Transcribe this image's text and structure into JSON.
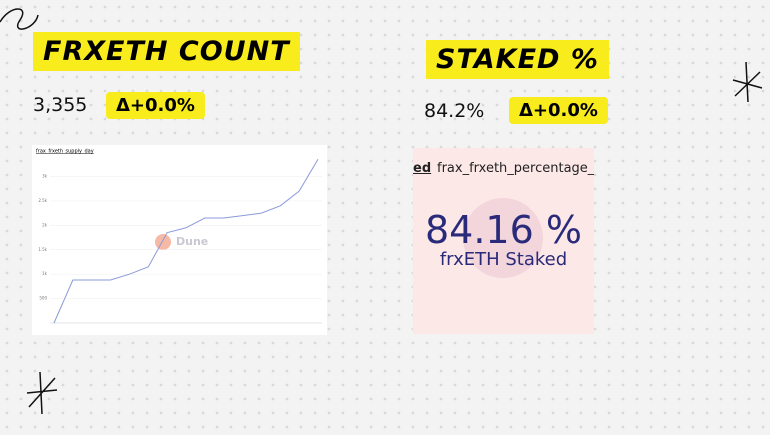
{
  "cards": [
    {
      "title": "FRXETH COUNT",
      "value": "3,355",
      "delta": "Δ+0.0%"
    },
    {
      "title": "STAKED %",
      "value": "84.2%",
      "delta": "Δ+0.0%"
    }
  ],
  "chart_data": {
    "type": "line",
    "title": "frax_frxeth_supply_day",
    "watermark": "Dune",
    "color": "#8a9bd8",
    "values": [
      0,
      880,
      880,
      880,
      1000,
      1150,
      1850,
      1950,
      2150,
      2150,
      2200,
      2250,
      2400,
      2700,
      3355
    ],
    "ylim": [
      0,
      3400
    ],
    "yticks": [
      {
        "value": 500,
        "label": "500"
      },
      {
        "value": 1000,
        "label": "1k"
      },
      {
        "value": 1500,
        "label": "1.5k"
      },
      {
        "value": 2000,
        "label": "2k"
      },
      {
        "value": 2500,
        "label": "2.5k"
      },
      {
        "value": 3000,
        "label": "3k"
      }
    ]
  },
  "staked_panel": {
    "tab": "ed",
    "query": "frax_frxeth_percentage_s",
    "value": "84.16 %",
    "label": "frxETH Staked"
  }
}
